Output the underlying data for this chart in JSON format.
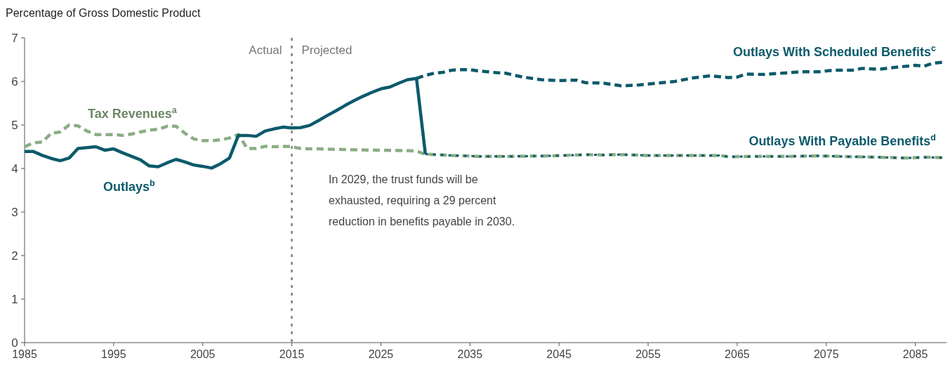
{
  "chart_data": {
    "type": "line",
    "ylabel": "Percentage of Gross Domestic Product",
    "xlim": [
      1985,
      2088.5
    ],
    "xticks": [
      1985,
      1995,
      2005,
      2015,
      2025,
      2035,
      2045,
      2055,
      2065,
      2075,
      2085
    ],
    "ylim": [
      0,
      7
    ],
    "yticks": [
      0,
      1,
      2,
      3,
      4,
      5,
      6,
      7
    ],
    "grid": false,
    "ref_lines": [
      {
        "axis": "x",
        "value": 2015,
        "color": "#808080",
        "line_style": "dotted"
      }
    ],
    "annotations": [
      "Actual",
      "Projected",
      "In 2029, the trust funds will be exhausted, requiring a 29 percent reduction in benefits payable in 2030."
    ],
    "series": [
      {
        "name": "Tax Revenues$^{a}$",
        "color": "#8aad84",
        "line_style": "dashed",
        "x": [
          1985,
          1986,
          1987,
          1988,
          1989,
          1990,
          1991,
          1992,
          1993,
          1994,
          1995,
          1996,
          1997,
          1998,
          1999,
          2000,
          2001,
          2002,
          2003,
          2004,
          2005,
          2006,
          2007,
          2008,
          2009,
          2010,
          2011,
          2012,
          2013,
          2014,
          2015,
          2016,
          2017,
          2018,
          2020,
          2022,
          2025,
          2028,
          2029,
          2030,
          2033,
          2036,
          2040,
          2044,
          2047,
          2048,
          2050,
          2052,
          2055,
          2060,
          2063,
          2064,
          2068,
          2071,
          2074,
          2078,
          2081,
          2084,
          2086,
          2088
        ],
        "values": [
          4.5,
          4.59,
          4.61,
          4.81,
          4.84,
          5.0,
          4.98,
          4.86,
          4.78,
          4.78,
          4.78,
          4.76,
          4.79,
          4.84,
          4.88,
          4.9,
          4.97,
          4.97,
          4.81,
          4.68,
          4.64,
          4.64,
          4.66,
          4.7,
          4.78,
          4.46,
          4.46,
          4.51,
          4.5,
          4.51,
          4.5,
          4.46,
          4.45,
          4.45,
          4.44,
          4.43,
          4.42,
          4.41,
          4.4,
          4.33,
          4.3,
          4.28,
          4.28,
          4.29,
          4.31,
          4.32,
          4.31,
          4.32,
          4.3,
          4.3,
          4.3,
          4.27,
          4.28,
          4.28,
          4.29,
          4.27,
          4.26,
          4.24,
          4.26,
          4.25
        ]
      },
      {
        "name": "Outlays$^{b}$",
        "color": "#0d5a6b",
        "line_style": "solid",
        "x": [
          1985,
          1986,
          1987,
          1988,
          1989,
          1990,
          1991,
          1992,
          1993,
          1994,
          1995,
          1996,
          1997,
          1998,
          1999,
          2000,
          2001,
          2002,
          2003,
          2004,
          2005,
          2006,
          2007,
          2008,
          2009,
          2010,
          2011,
          2012,
          2013,
          2014,
          2015,
          2016,
          2017,
          2018,
          2019,
          2020,
          2021,
          2022,
          2023,
          2024,
          2025,
          2026,
          2027,
          2028,
          2029,
          2030
        ],
        "values": [
          4.39,
          4.39,
          4.3,
          4.23,
          4.18,
          4.24,
          4.46,
          4.48,
          4.5,
          4.42,
          4.45,
          4.36,
          4.28,
          4.2,
          4.06,
          4.04,
          4.13,
          4.21,
          4.15,
          4.08,
          4.05,
          4.01,
          4.11,
          4.24,
          4.76,
          4.76,
          4.74,
          4.86,
          4.91,
          4.95,
          4.93,
          4.94,
          4.99,
          5.1,
          5.22,
          5.33,
          5.45,
          5.56,
          5.66,
          5.75,
          5.83,
          5.87,
          5.96,
          6.04,
          6.07,
          4.33
        ]
      },
      {
        "name": "Outlays With Scheduled Benefits$^{c}$",
        "color": "#0d5a6b",
        "line_style": "dashed",
        "x": [
          2029,
          2030,
          2031,
          2032,
          2033,
          2034,
          2035,
          2036,
          2037,
          2038,
          2039,
          2040,
          2041,
          2042,
          2043,
          2044,
          2045,
          2047,
          2048,
          2050,
          2052,
          2054,
          2056,
          2058,
          2060,
          2062,
          2064,
          2065,
          2066,
          2068,
          2070,
          2072,
          2074,
          2076,
          2078,
          2079,
          2081,
          2083,
          2085,
          2086,
          2087,
          2088
        ],
        "values": [
          6.07,
          6.14,
          6.19,
          6.21,
          6.26,
          6.27,
          6.27,
          6.24,
          6.22,
          6.2,
          6.19,
          6.14,
          6.1,
          6.07,
          6.04,
          6.03,
          6.02,
          6.03,
          5.97,
          5.96,
          5.9,
          5.92,
          5.96,
          6.0,
          6.08,
          6.13,
          6.09,
          6.1,
          6.17,
          6.16,
          6.19,
          6.22,
          6.22,
          6.26,
          6.26,
          6.3,
          6.28,
          6.33,
          6.37,
          6.35,
          6.42,
          6.44
        ]
      },
      {
        "name": "Outlays With Payable Benefits$^{d}$",
        "color": "#0d5a6b",
        "line_style": "dotted",
        "x": [
          2030,
          2033,
          2036,
          2040,
          2044,
          2047,
          2048,
          2050,
          2052,
          2055,
          2060,
          2063,
          2064,
          2068,
          2071,
          2074,
          2078,
          2081,
          2084,
          2086,
          2088
        ],
        "values": [
          4.33,
          4.3,
          4.28,
          4.28,
          4.29,
          4.31,
          4.32,
          4.31,
          4.32,
          4.3,
          4.3,
          4.3,
          4.27,
          4.28,
          4.28,
          4.29,
          4.27,
          4.26,
          4.24,
          4.26,
          4.25
        ]
      }
    ]
  }
}
